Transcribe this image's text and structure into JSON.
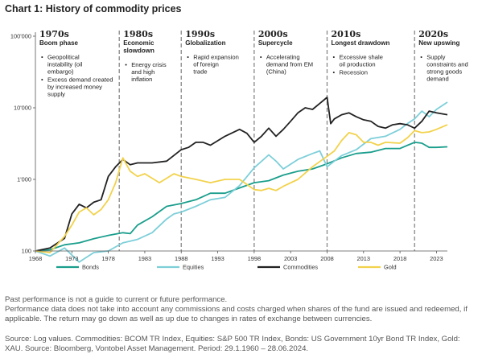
{
  "title": "Chart 1: History of commodity prices",
  "chart_data": {
    "type": "line",
    "y_scale": "log",
    "ylim": [
      100,
      100000
    ],
    "xlim": [
      1968,
      2024.5
    ],
    "y_ticks": [
      "100",
      "1'000",
      "10'000",
      "100'000"
    ],
    "y_tick_values": [
      100,
      1000,
      10000,
      100000
    ],
    "x_ticks": [
      "1968",
      "1973",
      "1978",
      "1983",
      "1988",
      "1993",
      "1998",
      "2003",
      "2008",
      "2013",
      "2018",
      "2023"
    ],
    "x_tick_values": [
      1968,
      1973,
      1978,
      1983,
      1988,
      1993,
      1998,
      2003,
      2008,
      2013,
      2018,
      2023
    ],
    "eras": [
      {
        "decade": "1970s",
        "theme": "Boom phase",
        "start": 1968,
        "bullets": [
          "Geopolitical instability (oil embargo)",
          "Excess demand created by increased money supply"
        ]
      },
      {
        "decade": "1980s",
        "theme": "Economic slowdown",
        "start": 1979.5,
        "bullets": [
          "Energy crisis and high inflation"
        ]
      },
      {
        "decade": "1990s",
        "theme": "Globalization",
        "start": 1988,
        "bullets": [
          "Rapid expansion of foreign trade"
        ]
      },
      {
        "decade": "2000s",
        "theme": "Supercycle",
        "start": 1998,
        "bullets": [
          "Accelerating demand from EM (China)"
        ]
      },
      {
        "decade": "2010s",
        "theme": "Longest drawdown",
        "start": 2008,
        "bullets": [
          "Excessive shale oil production",
          "Recession"
        ]
      },
      {
        "decade": "2020s",
        "theme": "New upswing",
        "start": 2020,
        "bullets": [
          "Supply constraints and strong goods demand"
        ]
      }
    ],
    "series": [
      {
        "name": "Bonds",
        "color": "#1a9e8c",
        "points": [
          [
            1968,
            100
          ],
          [
            1970,
            104
          ],
          [
            1972,
            122
          ],
          [
            1974,
            130
          ],
          [
            1976,
            148
          ],
          [
            1978,
            165
          ],
          [
            1980,
            180
          ],
          [
            1981,
            175
          ],
          [
            1982,
            230
          ],
          [
            1984,
            300
          ],
          [
            1986,
            420
          ],
          [
            1988,
            460
          ],
          [
            1990,
            520
          ],
          [
            1992,
            640
          ],
          [
            1994,
            640
          ],
          [
            1996,
            760
          ],
          [
            1998,
            900
          ],
          [
            2000,
            960
          ],
          [
            2002,
            1150
          ],
          [
            2004,
            1300
          ],
          [
            2006,
            1400
          ],
          [
            2008,
            1650
          ],
          [
            2010,
            2000
          ],
          [
            2012,
            2300
          ],
          [
            2014,
            2400
          ],
          [
            2016,
            2700
          ],
          [
            2018,
            2700
          ],
          [
            2020,
            3300
          ],
          [
            2021,
            3200
          ],
          [
            2022,
            2800
          ],
          [
            2023,
            2800
          ],
          [
            2024.5,
            2850
          ]
        ]
      },
      {
        "name": "Equities",
        "color": "#7dcfd9",
        "points": [
          [
            1968,
            100
          ],
          [
            1970,
            85
          ],
          [
            1972,
            110
          ],
          [
            1974,
            70
          ],
          [
            1976,
            95
          ],
          [
            1978,
            100
          ],
          [
            1980,
            130
          ],
          [
            1982,
            145
          ],
          [
            1984,
            180
          ],
          [
            1986,
            280
          ],
          [
            1987,
            330
          ],
          [
            1988,
            350
          ],
          [
            1990,
            420
          ],
          [
            1992,
            520
          ],
          [
            1994,
            560
          ],
          [
            1996,
            820
          ],
          [
            1998,
            1450
          ],
          [
            2000,
            2200
          ],
          [
            2001,
            1800
          ],
          [
            2002,
            1400
          ],
          [
            2004,
            1900
          ],
          [
            2006,
            2300
          ],
          [
            2007,
            2500
          ],
          [
            2008,
            1500
          ],
          [
            2009,
            1800
          ],
          [
            2010,
            2150
          ],
          [
            2012,
            2600
          ],
          [
            2014,
            3700
          ],
          [
            2016,
            4000
          ],
          [
            2018,
            5000
          ],
          [
            2019,
            6000
          ],
          [
            2020,
            7000
          ],
          [
            2021,
            9000
          ],
          [
            2022,
            7500
          ],
          [
            2023,
            9500
          ],
          [
            2024.5,
            12000
          ]
        ]
      },
      {
        "name": "Commodities",
        "color": "#222222",
        "points": [
          [
            1968,
            100
          ],
          [
            1970,
            110
          ],
          [
            1972,
            150
          ],
          [
            1973,
            330
          ],
          [
            1974,
            450
          ],
          [
            1975,
            400
          ],
          [
            1976,
            480
          ],
          [
            1977,
            520
          ],
          [
            1978,
            1100
          ],
          [
            1979,
            1500
          ],
          [
            1980,
            1900
          ],
          [
            1981,
            1600
          ],
          [
            1982,
            1700
          ],
          [
            1984,
            1700
          ],
          [
            1986,
            1800
          ],
          [
            1988,
            2600
          ],
          [
            1989,
            2800
          ],
          [
            1990,
            3300
          ],
          [
            1991,
            3300
          ],
          [
            1992,
            3000
          ],
          [
            1994,
            4000
          ],
          [
            1996,
            5000
          ],
          [
            1997,
            4400
          ],
          [
            1998,
            3300
          ],
          [
            1999,
            4000
          ],
          [
            2000,
            5200
          ],
          [
            2001,
            4000
          ],
          [
            2002,
            5000
          ],
          [
            2003,
            6500
          ],
          [
            2004,
            8500
          ],
          [
            2005,
            10000
          ],
          [
            2006,
            9500
          ],
          [
            2007,
            11500
          ],
          [
            2008,
            14000
          ],
          [
            2008.5,
            6000
          ],
          [
            2009,
            7000
          ],
          [
            2010,
            8000
          ],
          [
            2011,
            8500
          ],
          [
            2012,
            7500
          ],
          [
            2013,
            6800
          ],
          [
            2014,
            6500
          ],
          [
            2015,
            5500
          ],
          [
            2016,
            5200
          ],
          [
            2017,
            5800
          ],
          [
            2018,
            6000
          ],
          [
            2019,
            5800
          ],
          [
            2020,
            5200
          ],
          [
            2021,
            6500
          ],
          [
            2022,
            9000
          ],
          [
            2023,
            8500
          ],
          [
            2024.5,
            8000
          ]
        ]
      },
      {
        "name": "Gold",
        "color": "#f2d24b",
        "points": [
          [
            1968,
            100
          ],
          [
            1970,
            95
          ],
          [
            1972,
            160
          ],
          [
            1973,
            230
          ],
          [
            1974,
            350
          ],
          [
            1975,
            400
          ],
          [
            1976,
            320
          ],
          [
            1977,
            380
          ],
          [
            1978,
            520
          ],
          [
            1979,
            900
          ],
          [
            1980,
            2000
          ],
          [
            1981,
            1300
          ],
          [
            1982,
            1100
          ],
          [
            1983,
            1200
          ],
          [
            1985,
            900
          ],
          [
            1987,
            1200
          ],
          [
            1988,
            1100
          ],
          [
            1990,
            1000
          ],
          [
            1992,
            900
          ],
          [
            1994,
            1000
          ],
          [
            1996,
            1000
          ],
          [
            1997,
            850
          ],
          [
            1998,
            720
          ],
          [
            1999,
            700
          ],
          [
            2000,
            750
          ],
          [
            2001,
            700
          ],
          [
            2002,
            800
          ],
          [
            2004,
            1000
          ],
          [
            2006,
            1500
          ],
          [
            2008,
            2100
          ],
          [
            2009,
            2500
          ],
          [
            2010,
            3500
          ],
          [
            2011,
            4500
          ],
          [
            2012,
            4200
          ],
          [
            2013,
            3300
          ],
          [
            2014,
            3300
          ],
          [
            2015,
            3000
          ],
          [
            2016,
            3300
          ],
          [
            2018,
            3200
          ],
          [
            2019,
            3800
          ],
          [
            2020,
            4800
          ],
          [
            2021,
            4500
          ],
          [
            2022,
            4600
          ],
          [
            2023,
            5000
          ],
          [
            2024.5,
            5800
          ]
        ]
      }
    ],
    "legend_position": "bottom"
  },
  "notes": {
    "performance": "Past performance is not a guide to current or future performance.",
    "costs": "Performance data does not take into account any commissions and costs charged when shares of the fund are issued and redeemed, if applicable. The return may go down as well as up due to changes in rates of exchange between currencies.",
    "source": "Source: Log values. Commodities: BCOM TR Index, Equities: S&P 500 TR Index, Bonds: US Government 10yr Bond TR Index, Gold: XAU. Source: Bloomberg, Vontobel Asset Management. Period: 29.1.1960 – 28.06.2024."
  }
}
